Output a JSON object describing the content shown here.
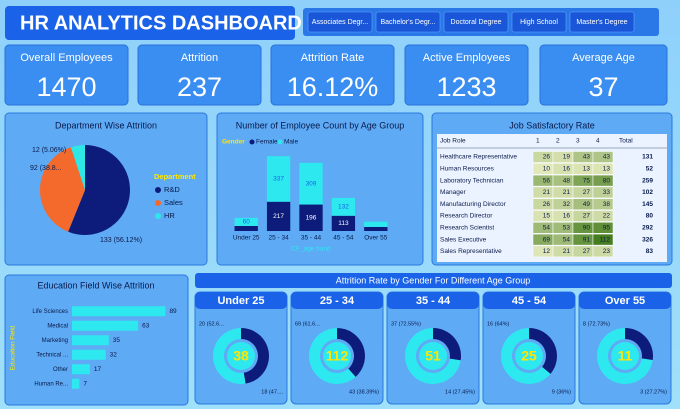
{
  "header": {
    "title": "HR ANALYTICS DASHBOARD"
  },
  "filters": [
    "Associates Degr...",
    "Bachelor's Degr...",
    "Doctoral Degree",
    "High School",
    "Master's Degree"
  ],
  "kpis": [
    {
      "label": "Overall Employees",
      "value": 1470
    },
    {
      "label": "Attrition",
      "value": 237
    },
    {
      "label": "Attrition Rate",
      "value": "16.12%"
    },
    {
      "label": "Active Employees",
      "value": 1233
    },
    {
      "label": "Average Age",
      "value": 37
    }
  ],
  "table": {
    "title": "Job Satisfactory Rate",
    "columns": [
      "Job Role",
      "1",
      "2",
      "3",
      "4",
      "Total"
    ],
    "rows": [
      [
        "Healthcare Representative",
        26,
        19,
        43,
        43,
        131
      ],
      [
        "Human Resources",
        10,
        16,
        13,
        13,
        52
      ],
      [
        "Laboratory Technician",
        56,
        48,
        75,
        80,
        259
      ],
      [
        "Manager",
        21,
        21,
        27,
        33,
        102
      ],
      [
        "Manufacturing Director",
        26,
        32,
        49,
        38,
        145
      ],
      [
        "Research Director",
        15,
        16,
        27,
        22,
        80
      ],
      [
        "Research Scientist",
        54,
        53,
        90,
        95,
        292
      ],
      [
        "Sales Executive",
        69,
        54,
        91,
        112,
        326
      ],
      [
        "Sales Representative",
        12,
        21,
        27,
        23,
        83
      ]
    ]
  },
  "chart_data": [
    {
      "type": "pie",
      "title": "Department Wise Attrition",
      "legend_title": "Department",
      "categories": [
        "R&D",
        "Sales",
        "HR"
      ],
      "values": [
        133,
        92,
        12
      ],
      "value_labels": [
        "133 (56.12%)",
        "92 (38.8...",
        "12 (5.06%)"
      ],
      "colors": [
        "#0d1b7a",
        "#f46a2c",
        "#2ee8e8"
      ]
    },
    {
      "type": "stacked-bar",
      "title": "Number of Employee Count by Age Group",
      "legend_title": "Gender",
      "x_label": "CF_age band",
      "categories": [
        "Under 25",
        "25 - 34",
        "35 - 44",
        "45 - 54",
        "Over 55"
      ],
      "series": [
        {
          "name": "Female",
          "color": "#0d1b7a",
          "values": [
            37,
            217,
            196,
            113,
            30
          ],
          "value_labels": [
            null,
            "217",
            "196",
            "113",
            null
          ]
        },
        {
          "name": "Male",
          "color": "#2ee8f0",
          "values": [
            60,
            337,
            309,
            132,
            39
          ],
          "value_labels": [
            "60",
            "337",
            "309",
            "132",
            null
          ]
        }
      ],
      "ylim": [
        0,
        600
      ]
    },
    {
      "type": "hbar",
      "title": "Education Field Wise Attrition",
      "y_label": "Education Field",
      "categories": [
        "Life Sciences",
        "Medical",
        "Marketing",
        "Technical ...",
        "Other",
        "Human Re..."
      ],
      "values": [
        89,
        63,
        35,
        32,
        17,
        7
      ],
      "color": "#2ee8f0",
      "xlim": [
        0,
        100
      ]
    },
    {
      "type": "donut-group",
      "title": "Attrition Rate by Gender For Different Age Group",
      "colors": [
        "#2ee8f0",
        "#0d1b7a"
      ],
      "groups": [
        {
          "label": "Under 25",
          "total": 38,
          "values": [
            20,
            18
          ],
          "value_labels": [
            "20 (52.6...",
            "18 (47...."
          ]
        },
        {
          "label": "25 - 34",
          "total": 112,
          "values": [
            69,
            43
          ],
          "value_labels": [
            "69 (61.6...",
            "43 (38.39%)"
          ]
        },
        {
          "label": "35 - 44",
          "total": 51,
          "values": [
            37,
            14
          ],
          "value_labels": [
            "37 (72.55%)",
            "14 (27.45%)"
          ]
        },
        {
          "label": "45 - 54",
          "total": 25,
          "values": [
            16,
            9
          ],
          "value_labels": [
            "16 (64%)",
            "9 (36%)"
          ]
        },
        {
          "label": "Over 55",
          "total": 11,
          "values": [
            8,
            3
          ],
          "value_labels": [
            "8 (72.73%)",
            "3 (27.27%)"
          ]
        }
      ]
    }
  ]
}
